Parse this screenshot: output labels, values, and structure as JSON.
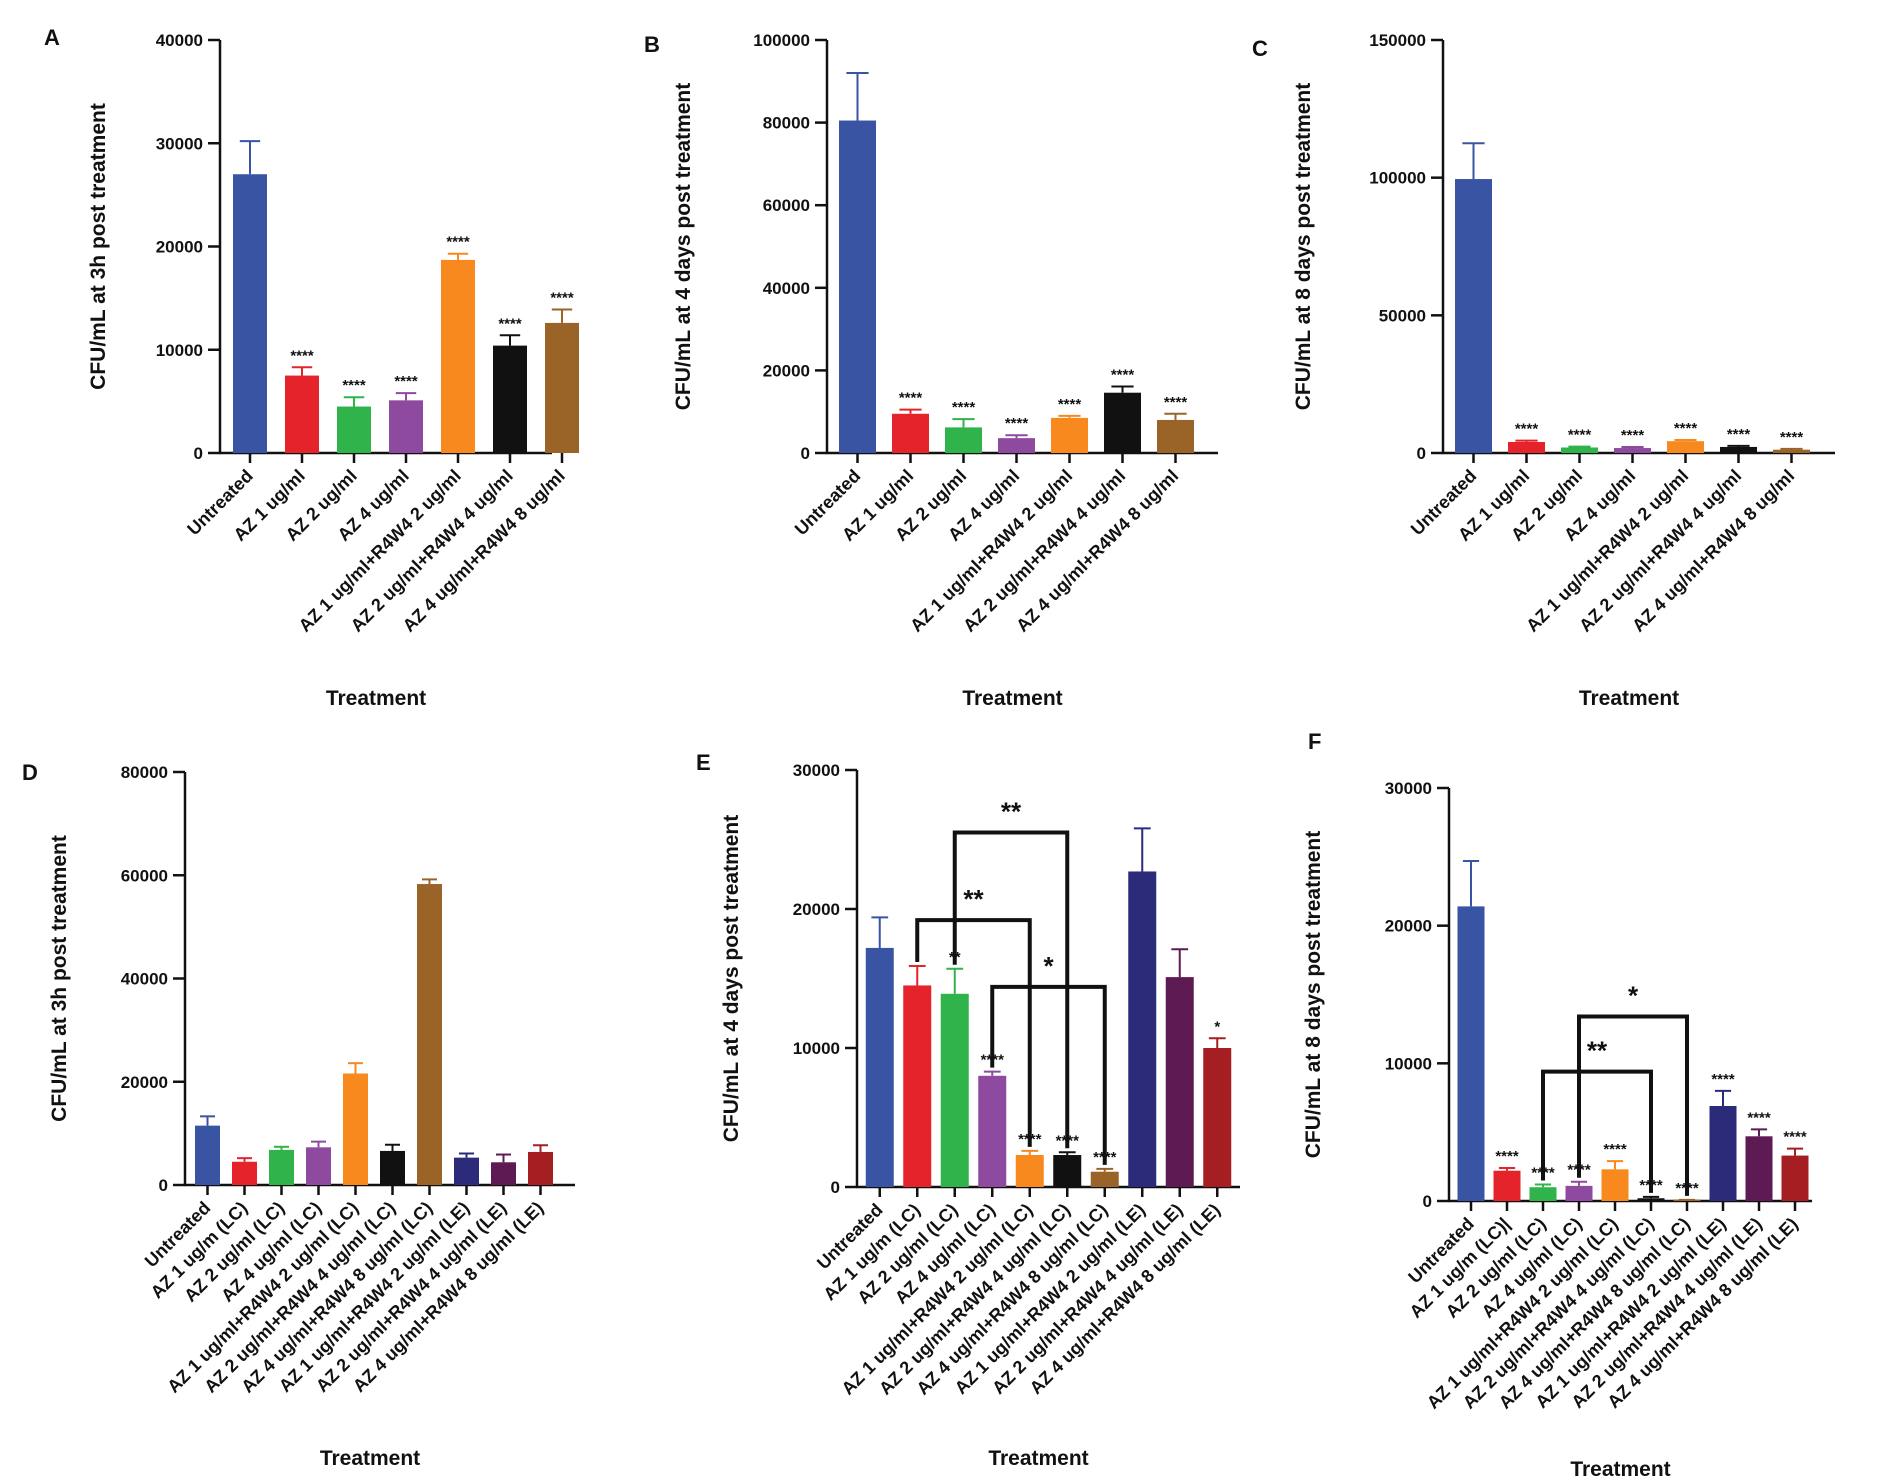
{
  "colors": {
    "untreated": "#3a54a4",
    "red": "#e4232b",
    "green": "#2fb34a",
    "purple": "#8e4a9e",
    "orange": "#f7891f",
    "black": "#111111",
    "brown": "#9a6428",
    "navy": "#2b2b7a",
    "plum": "#5e1a52",
    "maroon": "#a51e22"
  },
  "chart_data": [
    {
      "panel": "A",
      "type": "bar",
      "xlabel": "Treatment",
      "ylabel": "CFU/mL at 3h post treatment",
      "ylim": [
        0,
        40000
      ],
      "yticks": [
        "0",
        "10000",
        "20000",
        "30000",
        "40000"
      ],
      "categories": [
        "Untreated",
        "AZ 1 ug/ml",
        "AZ 2 ug/ml",
        "AZ 4 ug/ml",
        "AZ 1 ug/ml+R4W4 2 ug/ml",
        "AZ 2 ug/ml+R4W4 4 ug/ml",
        "AZ 4 ug/ml+R4W4 8 ug/ml"
      ],
      "values": [
        27000,
        7500,
        4500,
        5100,
        18700,
        10400,
        12600
      ],
      "errors": [
        3200,
        800,
        900,
        700,
        600,
        1000,
        1300
      ],
      "colors": [
        "untreated",
        "red",
        "green",
        "purple",
        "orange",
        "black",
        "brown"
      ],
      "significance": [
        "",
        "****",
        "****",
        "****",
        "****",
        "****",
        "****"
      ],
      "brackets": []
    },
    {
      "panel": "B",
      "type": "bar",
      "xlabel": "Treatment",
      "ylabel": "CFU/mL at 4 days post treatment",
      "ylim": [
        0,
        100000
      ],
      "yticks": [
        "0",
        "20000",
        "40000",
        "60000",
        "80000",
        "100000"
      ],
      "categories": [
        "Untreated",
        "AZ 1 ug/ml",
        "AZ 2 ug/ml",
        "AZ 4 ug/ml",
        "AZ 1 ug/ml+R4W4 2 ug/ml",
        "AZ 2 ug/ml+R4W4 4 ug/ml",
        "AZ 4 ug/ml+R4W4 8 ug/ml"
      ],
      "values": [
        80500,
        9500,
        6200,
        3600,
        8500,
        14600,
        8000
      ],
      "errors": [
        11500,
        1000,
        2000,
        700,
        500,
        1500,
        1500
      ],
      "colors": [
        "untreated",
        "red",
        "green",
        "purple",
        "orange",
        "black",
        "brown"
      ],
      "significance": [
        "",
        "****",
        "****",
        "****",
        "****",
        "****",
        "****"
      ],
      "brackets": []
    },
    {
      "panel": "C",
      "type": "bar",
      "xlabel": "Treatment",
      "ylabel": "CFU/mL at 8 days post treatment",
      "ylim": [
        0,
        150000
      ],
      "yticks": [
        "0",
        "50000",
        "100000",
        "150000"
      ],
      "categories": [
        "Untreated",
        "AZ 1 ug/ml",
        "AZ 2 ug/ml",
        "AZ 4 ug/ml",
        "AZ 1 ug/ml+R4W4 2 ug/ml",
        "AZ 2 ug/ml+R4W4 4 ug/ml",
        "AZ 4 ug/ml+R4W4 8 ug/ml"
      ],
      "values": [
        99500,
        4000,
        2000,
        1800,
        4300,
        2200,
        1200
      ],
      "errors": [
        13000,
        500,
        300,
        400,
        400,
        400,
        300
      ],
      "colors": [
        "untreated",
        "red",
        "green",
        "purple",
        "orange",
        "black",
        "brown"
      ],
      "significance": [
        "",
        "****",
        "****",
        "****",
        "****",
        "****",
        "****"
      ],
      "brackets": []
    },
    {
      "panel": "D",
      "type": "bar",
      "xlabel": "Treatment",
      "ylabel": "CFU/mL at 3h post treatment",
      "ylim": [
        0,
        80000
      ],
      "yticks": [
        "0",
        "20000",
        "40000",
        "60000",
        "80000"
      ],
      "categories": [
        "Untreated",
        "AZ 1 ug/m (LC)",
        "AZ 2 ug/ml (LC)",
        "AZ 4 ug/ml (LC)",
        "AZ 1 ug/ml+R4W4 2 ug/ml (LC)",
        "AZ 2 ug/ml+R4W4 4 ug/ml (LC)",
        "AZ 4 ug/ml+R4W4 8 ug/ml (LC)",
        "AZ 1 ug/ml+R4W4 2 ug/ml (LE)",
        "AZ 2 ug/ml+R4W4 4 ug/ml (LE)",
        "AZ 4 ug/ml+R4W4 8 ug/ml (LE)"
      ],
      "values": [
        11500,
        4500,
        6800,
        7300,
        21600,
        6600,
        58300,
        5300,
        4400,
        6400
      ],
      "errors": [
        1800,
        700,
        600,
        1100,
        2000,
        1200,
        900,
        800,
        1500,
        1300
      ],
      "colors": [
        "untreated",
        "red",
        "green",
        "purple",
        "orange",
        "black",
        "brown",
        "navy",
        "plum",
        "maroon"
      ],
      "significance": [
        "",
        "",
        "",
        "",
        "",
        "",
        "",
        "",
        "",
        ""
      ],
      "brackets": []
    },
    {
      "panel": "E",
      "type": "bar",
      "xlabel": "Treatment",
      "ylabel": "CFU/mL at 4 days post treatment",
      "ylim": [
        0,
        30000
      ],
      "yticks": [
        "0",
        "10000",
        "20000",
        "30000"
      ],
      "categories": [
        "Untreated",
        "AZ 1 ug/m (LC)",
        "AZ 2 ug/ml (LC)",
        "AZ 4 ug/ml (LC)",
        "AZ 1 ug/ml+R4W4 2 ug/ml (LC)",
        "AZ 2 ug/ml+R4W4 4 ug/ml (LC)",
        "AZ 4 ug/ml+R4W4 8 ug/ml (LC)",
        "AZ 1 ug/ml+R4W4 2 ug/ml (LE)",
        "AZ 2 ug/ml+R4W4 4 ug/ml (LE)",
        "AZ 4 ug/ml+R4W4 8 ug/ml (LE)"
      ],
      "values": [
        17200,
        14500,
        13900,
        8000,
        2300,
        2300,
        1100,
        22700,
        15100,
        10000
      ],
      "errors": [
        2200,
        1400,
        1800,
        300,
        300,
        200,
        200,
        3100,
        2000,
        700
      ],
      "colors": [
        "untreated",
        "red",
        "green",
        "purple",
        "orange",
        "black",
        "brown",
        "navy",
        "plum",
        "maroon"
      ],
      "significance": [
        "",
        "",
        "**",
        "****",
        "****",
        "****",
        "****",
        "",
        "",
        "*"
      ],
      "brackets": [
        {
          "from": 1,
          "to": 4,
          "y": 19200,
          "label": "**"
        },
        {
          "from": 2,
          "to": 5,
          "y": 25500,
          "label": "**"
        },
        {
          "from": 3,
          "to": 6,
          "y": 14400,
          "label": "*"
        }
      ]
    },
    {
      "panel": "F",
      "type": "bar",
      "xlabel": "Treatment",
      "ylabel": "CFU/mL at 8 days post treatment",
      "ylim": [
        0,
        30000
      ],
      "yticks": [
        "0",
        "10000",
        "20000",
        "30000"
      ],
      "categories": [
        "Untreated",
        "AZ 1 ug/m (LC)|",
        "AZ 2 ug/ml (LC)",
        "AZ 4 ug/ml (LC)",
        "AZ 1 ug/ml+R4W4 2 ug/ml (LC)",
        "AZ 2 ug/ml+R4W4 4 ug/ml (LC)",
        "AZ 4 ug/ml+R4W4 8 ug/ml (LC)",
        "AZ 1 ug/ml+R4W4 2 ug/ml (LE)",
        "AZ 2 ug/ml+R4W4 4 ug/ml (LE)",
        "AZ 4 ug/ml+R4W4 8 ug/ml (LE)"
      ],
      "values": [
        21400,
        2200,
        1000,
        1100,
        2300,
        200,
        50,
        6900,
        4700,
        3300
      ],
      "errors": [
        3300,
        200,
        200,
        300,
        600,
        100,
        30,
        1100,
        500,
        500
      ],
      "colors": [
        "untreated",
        "red",
        "green",
        "purple",
        "orange",
        "black",
        "brown",
        "navy",
        "plum",
        "maroon"
      ],
      "significance": [
        "",
        "****",
        "****",
        "****",
        "****",
        "****",
        "****",
        "****",
        "****",
        "****"
      ],
      "brackets": [
        {
          "from": 2,
          "to": 5,
          "y": 9400,
          "label": "**"
        },
        {
          "from": 3,
          "to": 6,
          "y": 13400,
          "label": "*"
        }
      ]
    }
  ]
}
